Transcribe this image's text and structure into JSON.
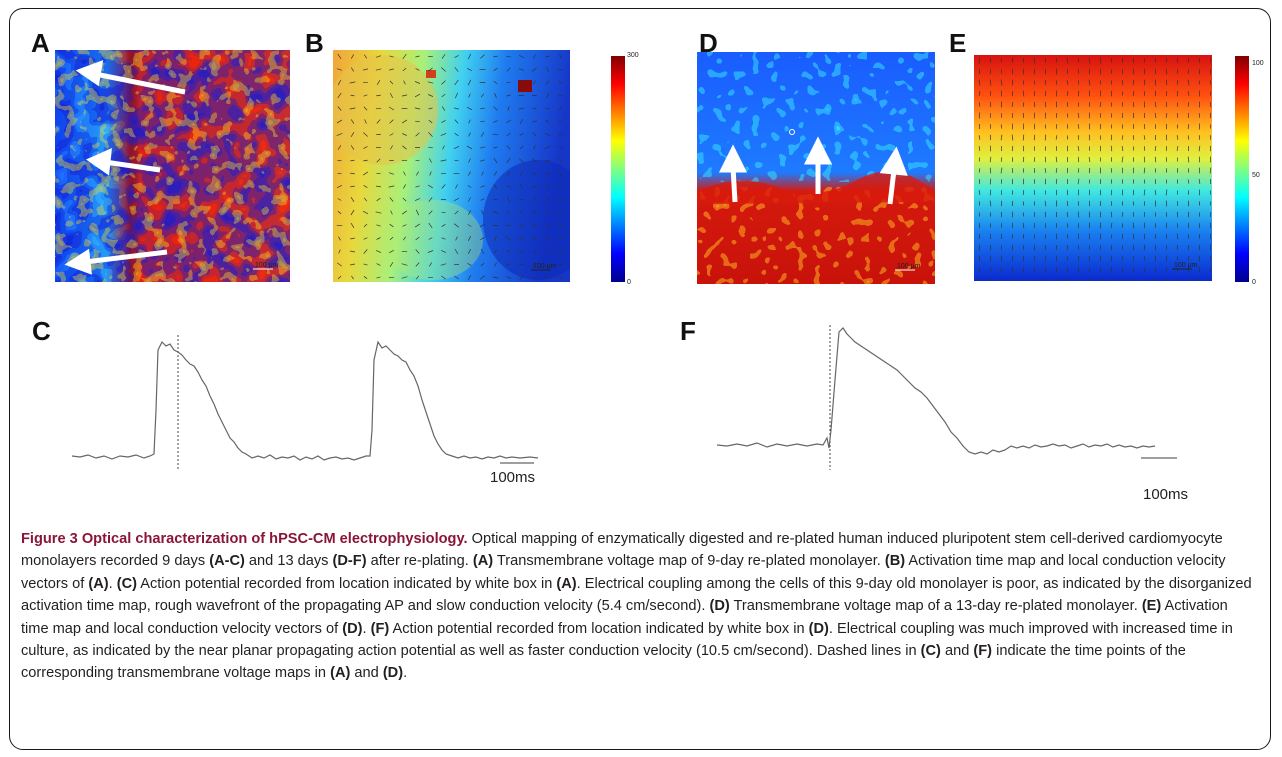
{
  "panels": {
    "a": "A",
    "b": "B",
    "c": "C",
    "d": "D",
    "e": "E",
    "f": "F"
  },
  "colorbars": {
    "b": {
      "max": "300",
      "min": "0"
    },
    "e": {
      "max": "100",
      "mid": "50",
      "min": "0"
    }
  },
  "scalebars": {
    "map": "100 μm"
  },
  "traces": {
    "c_scale": "100ms",
    "f_scale": "100ms"
  },
  "colors": {
    "fig_title": "#8a1538",
    "jet_low": "#00008f",
    "jet_mid": "#10ffef",
    "jet_high": "#800000"
  },
  "caption": {
    "title": "Figure 3 Optical characterization of hPSC-CM electrophysiology.",
    "s1": " Optical mapping of enzymatically digested and re-plated human induced pluripotent stem cell-derived cardiomyocyte monolayers recorded 9 days ",
    "r_ac": "(A-C)",
    "s2": " and 13 days ",
    "r_df": "(D-F)",
    "s3": " after re-plating. ",
    "r_a": "(A)",
    "s4": " Transmembrane voltage map of 9-day re-plated monolayer. ",
    "r_b": "(B)",
    "s5": " Activation time map and local conduction velocity vectors of ",
    "r_a2": "(A)",
    "s6": ". ",
    "r_c": "(C)",
    "s7": " Action potential recorded from location indicated by white box in ",
    "r_a3": "(A)",
    "s8": ". Electrical coupling among the cells of this 9-day old monolayer is poor, as indicated by the disorganized activation time map, rough wavefront of the propagating AP and slow conduction velocity (5.4 cm/second). ",
    "r_d": "(D)",
    "s9": " Transmembrane voltage map of a 13-day re-plated monolayer. ",
    "r_e": "(E)",
    "s10": " Activation time map and local conduction velocity vectors of ",
    "r_d2": "(D)",
    "s11": ". ",
    "r_f": "(F)",
    "s12": " Action potential recorded from location indicated by white box in ",
    "r_d3": "(D)",
    "s13": ". Electrical coupling was much improved with increased time in culture, as indicated by the near planar propagating action potential as well as faster conduction velocity (10.5 cm/second). Dashed lines in ",
    "r_c2": "(C)",
    "s14": " and ",
    "r_f2": "(F)",
    "s15": " indicate the time points of the corresponding transmembrane voltage maps in ",
    "r_a4": "(A)",
    "s16": " and ",
    "r_d4": "(D)",
    "s17": "."
  }
}
